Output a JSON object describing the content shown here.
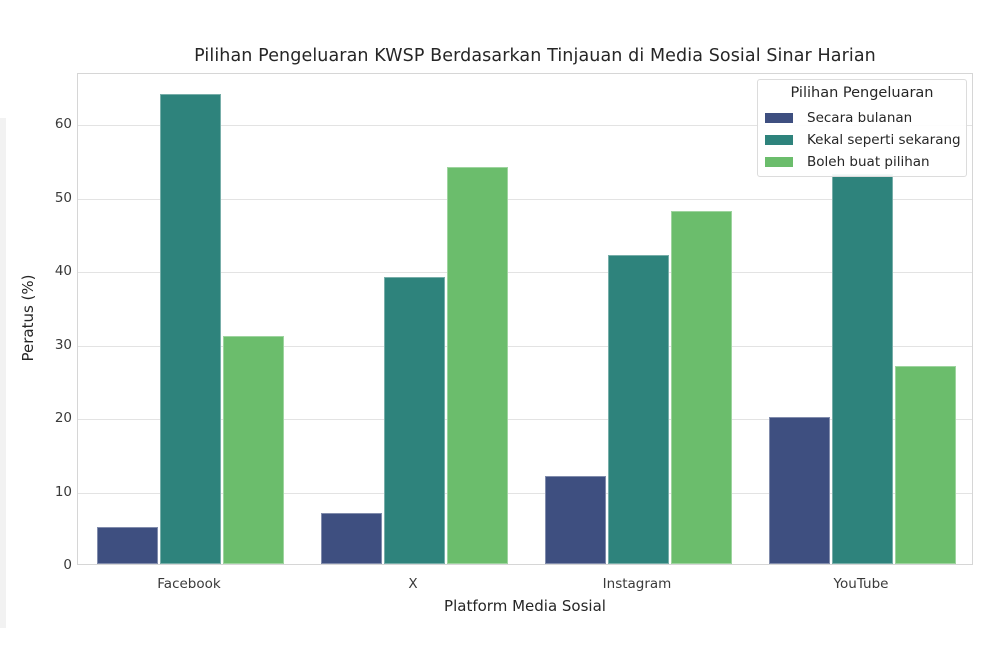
{
  "chart_data": {
    "type": "bar",
    "title": "Pilihan Pengeluaran KWSP Berdasarkan Tinjauan di Media Sosial Sinar Harian",
    "xlabel": "Platform Media Sosial",
    "ylabel": "Peratus (%)",
    "ylim": [
      0,
      67
    ],
    "yticks": [
      0,
      10,
      20,
      30,
      40,
      50,
      60
    ],
    "grid": true,
    "legend_title": "Pilihan Pengeluaran",
    "legend_position": "upper right",
    "categories": [
      "Facebook",
      "X",
      "Instagram",
      "YouTube"
    ],
    "series": [
      {
        "name": "Secara bulanan",
        "color": "#3e4f80",
        "values": [
          5,
          7,
          12,
          20
        ]
      },
      {
        "name": "Kekal seperti sekarang",
        "color": "#2e837c",
        "values": [
          64,
          39,
          42,
          53
        ]
      },
      {
        "name": "Boleh buat pilihan",
        "color": "#6bbd6c",
        "values": [
          31,
          54,
          48,
          27
        ]
      }
    ]
  }
}
